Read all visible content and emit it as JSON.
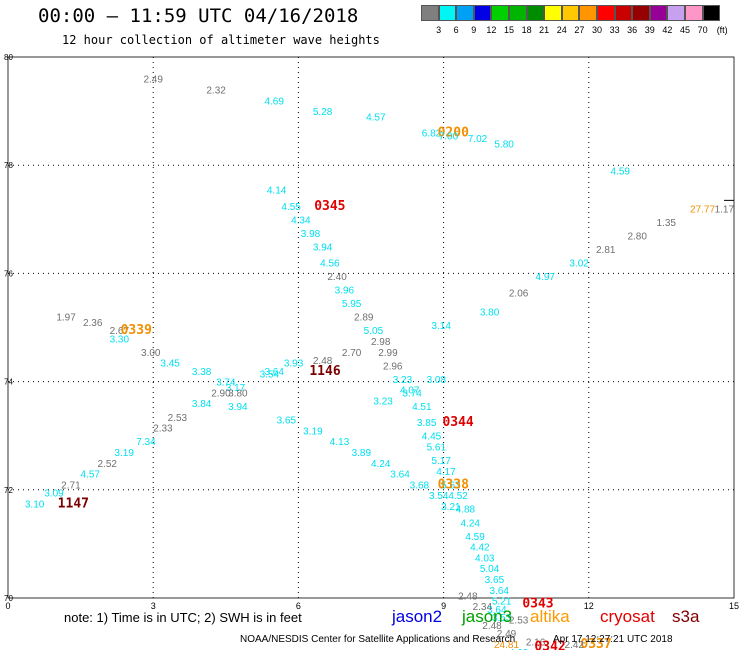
{
  "header": {
    "title": "00:00 – 11:59 UTC 04/16/2018",
    "subtitle": "12 hour collection of altimeter wave heights"
  },
  "legend": {
    "unit": "(ft)",
    "items": [
      {
        "label": "3",
        "color": "#7f7f7f"
      },
      {
        "label": "6",
        "color": "#00f5f5"
      },
      {
        "label": "9",
        "color": "#00a0f5"
      },
      {
        "label": "12",
        "color": "#0000e6"
      },
      {
        "label": "15",
        "color": "#00d000"
      },
      {
        "label": "18",
        "color": "#00b400"
      },
      {
        "label": "21",
        "color": "#008c00"
      },
      {
        "label": "24",
        "color": "#ffff00"
      },
      {
        "label": "27",
        "color": "#ffc800"
      },
      {
        "label": "30",
        "color": "#ff9600"
      },
      {
        "label": "33",
        "color": "#ff0000"
      },
      {
        "label": "36",
        "color": "#c80000"
      },
      {
        "label": "39",
        "color": "#960000"
      },
      {
        "label": "42",
        "color": "#960096"
      },
      {
        "label": "45",
        "color": "#c8a0f0"
      },
      {
        "label": "70",
        "color": "#ff96c8"
      },
      {
        "label": "",
        "color": "#000000"
      }
    ]
  },
  "chart_data": {
    "type": "scatter",
    "xlim": [
      0,
      15
    ],
    "ylim": [
      70,
      80
    ],
    "x_ticks": [
      "0",
      "3",
      "6",
      "9",
      "12",
      "15"
    ],
    "y_ticks": [
      "70",
      "72",
      "74",
      "76",
      "78",
      "80"
    ],
    "grid": true,
    "colors": {
      "cyan": "#00e0f0",
      "gray": "#707070",
      "orange": "#f09000",
      "red": "#e00000",
      "maroon": "#7a0000"
    },
    "wave_heights": [
      {
        "x": 3.0,
        "y": 79.6,
        "label": "2.49",
        "color": "gray"
      },
      {
        "x": 4.3,
        "y": 79.4,
        "label": "2.32",
        "color": "gray"
      },
      {
        "x": 5.5,
        "y": 79.2,
        "label": "4.69",
        "color": "cyan"
      },
      {
        "x": 6.5,
        "y": 79.0,
        "label": "5.28",
        "color": "cyan"
      },
      {
        "x": 7.6,
        "y": 78.9,
        "label": "4.57",
        "color": "cyan"
      },
      {
        "x": 8.75,
        "y": 78.6,
        "label": "6.82",
        "color": "cyan"
      },
      {
        "x": 9.2,
        "y": 78.6,
        "label": "0200",
        "color": "orange",
        "time": true
      },
      {
        "x": 9.1,
        "y": 78.55,
        "label": "7.00",
        "color": "cyan"
      },
      {
        "x": 9.7,
        "y": 78.5,
        "label": "7.02",
        "color": "cyan"
      },
      {
        "x": 10.25,
        "y": 78.4,
        "label": "5.80",
        "color": "cyan"
      },
      {
        "x": 12.65,
        "y": 77.9,
        "label": "4.59",
        "color": "cyan"
      },
      {
        "x": 14.8,
        "y": 77.2,
        "label": "1.17",
        "color": "gray"
      },
      {
        "x": 5.55,
        "y": 77.55,
        "label": "4.14",
        "color": "cyan"
      },
      {
        "x": 5.85,
        "y": 77.25,
        "label": "4.55",
        "color": "cyan"
      },
      {
        "x": 6.65,
        "y": 77.25,
        "label": "0345",
        "color": "red",
        "time": true
      },
      {
        "x": 6.05,
        "y": 77.0,
        "label": "4.34",
        "color": "cyan"
      },
      {
        "x": 6.25,
        "y": 76.75,
        "label": "3.98",
        "color": "cyan"
      },
      {
        "x": 6.5,
        "y": 76.5,
        "label": "3.94",
        "color": "cyan"
      },
      {
        "x": 6.65,
        "y": 76.2,
        "label": "4.56",
        "color": "cyan"
      },
      {
        "x": 6.8,
        "y": 75.95,
        "label": "2.40",
        "color": "gray"
      },
      {
        "x": 6.95,
        "y": 75.7,
        "label": "3.96",
        "color": "cyan"
      },
      {
        "x": 7.1,
        "y": 75.45,
        "label": "5.95",
        "color": "cyan"
      },
      {
        "x": 7.35,
        "y": 75.2,
        "label": "2.89",
        "color": "gray"
      },
      {
        "x": 7.55,
        "y": 74.95,
        "label": "5.05",
        "color": "cyan"
      },
      {
        "x": 7.7,
        "y": 74.75,
        "label": "2.98",
        "color": "gray"
      },
      {
        "x": 7.85,
        "y": 74.55,
        "label": "2.99",
        "color": "gray"
      },
      {
        "x": 7.95,
        "y": 74.3,
        "label": "2.96",
        "color": "gray"
      },
      {
        "x": 8.15,
        "y": 74.05,
        "label": "3.23",
        "color": "cyan"
      },
      {
        "x": 8.85,
        "y": 74.05,
        "label": "3.08",
        "color": "cyan"
      },
      {
        "x": 8.3,
        "y": 73.85,
        "label": "4.07",
        "color": "cyan"
      },
      {
        "x": 8.35,
        "y": 73.8,
        "label": "3.74",
        "color": "cyan"
      },
      {
        "x": 7.75,
        "y": 73.65,
        "label": "3.23",
        "color": "cyan"
      },
      {
        "x": 8.55,
        "y": 73.55,
        "label": "4.51",
        "color": "cyan"
      },
      {
        "x": 8.65,
        "y": 73.25,
        "label": "3.85",
        "color": "cyan"
      },
      {
        "x": 9.3,
        "y": 73.25,
        "label": "0344",
        "color": "red",
        "time": true
      },
      {
        "x": 8.75,
        "y": 73.0,
        "label": "4.45",
        "color": "cyan"
      },
      {
        "x": 8.85,
        "y": 72.8,
        "label": "5.61",
        "color": "cyan"
      },
      {
        "x": 8.95,
        "y": 72.55,
        "label": "5.17",
        "color": "cyan"
      },
      {
        "x": 9.05,
        "y": 72.35,
        "label": "4.17",
        "color": "cyan"
      },
      {
        "x": 9.15,
        "y": 72.1,
        "label": "5.63",
        "color": "cyan"
      },
      {
        "x": 9.3,
        "y": 71.9,
        "label": "4.52",
        "color": "cyan"
      },
      {
        "x": 9.45,
        "y": 71.65,
        "label": "4.88",
        "color": "cyan"
      },
      {
        "x": 9.55,
        "y": 71.4,
        "label": "4.24",
        "color": "cyan"
      },
      {
        "x": 9.65,
        "y": 71.15,
        "label": "4.59",
        "color": "cyan"
      },
      {
        "x": 9.75,
        "y": 70.95,
        "label": "4.42",
        "color": "cyan"
      },
      {
        "x": 9.85,
        "y": 70.75,
        "label": "4.03",
        "color": "cyan"
      },
      {
        "x": 9.95,
        "y": 70.55,
        "label": "5.04",
        "color": "cyan"
      },
      {
        "x": 10.05,
        "y": 70.35,
        "label": "3.65",
        "color": "cyan"
      },
      {
        "x": 10.15,
        "y": 70.15,
        "label": "3.64",
        "color": "cyan"
      },
      {
        "x": 10.2,
        "y": 69.95,
        "label": "5.21",
        "color": "cyan"
      },
      {
        "x": 10.1,
        "y": 69.8,
        "label": "3.64",
        "color": "cyan"
      },
      {
        "x": 10.2,
        "y": 69.65,
        "label": "3.53",
        "color": "cyan"
      },
      {
        "x": 10.0,
        "y": 69.5,
        "label": "2.48",
        "color": "gray"
      },
      {
        "x": 10.3,
        "y": 69.35,
        "label": "2.49",
        "color": "gray"
      },
      {
        "x": 10.9,
        "y": 69.2,
        "label": "2.16",
        "color": "gray"
      },
      {
        "x": 11.2,
        "y": 69.1,
        "label": "0342",
        "color": "red",
        "time": true
      },
      {
        "x": 12.15,
        "y": 69.15,
        "label": "0337",
        "color": "orange",
        "time": true
      },
      {
        "x": 10.3,
        "y": 69.15,
        "label": "24.81",
        "color": "orange"
      },
      {
        "x": 10.55,
        "y": 69.0,
        "label": "4.63",
        "color": "cyan"
      },
      {
        "x": 10.95,
        "y": 69.9,
        "label": "0343",
        "color": "red",
        "time": true
      },
      {
        "x": 9.5,
        "y": 70.05,
        "label": "2.48",
        "color": "gray"
      },
      {
        "x": 9.8,
        "y": 69.85,
        "label": "2.34",
        "color": "gray"
      },
      {
        "x": 10.55,
        "y": 69.6,
        "label": "2.53",
        "color": "gray"
      },
      {
        "x": 11.7,
        "y": 69.15,
        "label": "2.42",
        "color": "gray"
      },
      {
        "x": 1.2,
        "y": 75.2,
        "label": "1.97",
        "color": "gray"
      },
      {
        "x": 1.75,
        "y": 75.1,
        "label": "2.36",
        "color": "gray"
      },
      {
        "x": 2.3,
        "y": 74.95,
        "label": "2.67",
        "color": "gray"
      },
      {
        "x": 2.65,
        "y": 74.95,
        "label": "0339",
        "color": "orange",
        "time": true
      },
      {
        "x": 2.3,
        "y": 74.8,
        "label": "3.30",
        "color": "cyan"
      },
      {
        "x": 2.95,
        "y": 74.55,
        "label": "3.00",
        "color": "gray"
      },
      {
        "x": 3.35,
        "y": 74.35,
        "label": "3.45",
        "color": "cyan"
      },
      {
        "x": 4.0,
        "y": 74.2,
        "label": "3.38",
        "color": "cyan"
      },
      {
        "x": 4.5,
        "y": 74.0,
        "label": "3.74",
        "color": "cyan"
      },
      {
        "x": 4.7,
        "y": 73.9,
        "label": "3.17",
        "color": "cyan"
      },
      {
        "x": 5.4,
        "y": 74.15,
        "label": "3.54",
        "color": "cyan"
      },
      {
        "x": 5.5,
        "y": 74.2,
        "label": "3.64",
        "color": "cyan"
      },
      {
        "x": 5.9,
        "y": 74.35,
        "label": "3.93",
        "color": "cyan"
      },
      {
        "x": 6.5,
        "y": 74.4,
        "label": "2.48",
        "color": "gray"
      },
      {
        "x": 7.1,
        "y": 74.55,
        "label": "2.70",
        "color": "gray"
      },
      {
        "x": 6.55,
        "y": 74.2,
        "label": "1146",
        "color": "maroon",
        "time": true
      },
      {
        "x": 4.4,
        "y": 73.8,
        "label": "2.90",
        "color": "gray"
      },
      {
        "x": 4.75,
        "y": 73.8,
        "label": "3.80",
        "color": "gray"
      },
      {
        "x": 4.0,
        "y": 73.6,
        "label": "3.84",
        "color": "cyan"
      },
      {
        "x": 3.5,
        "y": 73.35,
        "label": "2.53",
        "color": "gray"
      },
      {
        "x": 4.75,
        "y": 73.55,
        "label": "3.94",
        "color": "cyan"
      },
      {
        "x": 5.75,
        "y": 73.3,
        "label": "3.65",
        "color": "cyan"
      },
      {
        "x": 6.3,
        "y": 73.1,
        "label": "3.19",
        "color": "cyan"
      },
      {
        "x": 6.85,
        "y": 72.9,
        "label": "4.13",
        "color": "cyan"
      },
      {
        "x": 7.3,
        "y": 72.7,
        "label": "3.89",
        "color": "cyan"
      },
      {
        "x": 7.7,
        "y": 72.5,
        "label": "4.24",
        "color": "cyan"
      },
      {
        "x": 8.1,
        "y": 72.3,
        "label": "3.64",
        "color": "cyan"
      },
      {
        "x": 8.5,
        "y": 72.1,
        "label": "3.68",
        "color": "cyan"
      },
      {
        "x": 9.2,
        "y": 72.1,
        "label": "0338",
        "color": "orange",
        "time": true
      },
      {
        "x": 8.9,
        "y": 71.9,
        "label": "3.54",
        "color": "cyan"
      },
      {
        "x": 9.15,
        "y": 71.7,
        "label": "3.21",
        "color": "cyan"
      },
      {
        "x": 3.2,
        "y": 73.15,
        "label": "2.33",
        "color": "gray"
      },
      {
        "x": 2.85,
        "y": 72.9,
        "label": "7.34",
        "color": "cyan"
      },
      {
        "x": 2.4,
        "y": 72.7,
        "label": "3.19",
        "color": "cyan"
      },
      {
        "x": 2.05,
        "y": 72.5,
        "label": "2.52",
        "color": "gray"
      },
      {
        "x": 1.7,
        "y": 72.3,
        "label": "4.57",
        "color": "cyan"
      },
      {
        "x": 1.3,
        "y": 72.1,
        "label": "2.71",
        "color": "gray"
      },
      {
        "x": 0.95,
        "y": 71.95,
        "label": "3.09",
        "color": "cyan"
      },
      {
        "x": 0.55,
        "y": 71.75,
        "label": "3.10",
        "color": "cyan"
      },
      {
        "x": 1.35,
        "y": 71.75,
        "label": "1147",
        "color": "maroon",
        "time": true
      },
      {
        "x": 8.95,
        "y": 75.05,
        "label": "3.14",
        "color": "cyan"
      },
      {
        "x": 9.95,
        "y": 75.3,
        "label": "3.80",
        "color": "cyan"
      },
      {
        "x": 10.55,
        "y": 75.65,
        "label": "2.06",
        "color": "gray"
      },
      {
        "x": 11.1,
        "y": 75.95,
        "label": "4.97",
        "color": "cyan"
      },
      {
        "x": 11.8,
        "y": 76.2,
        "label": "3.02",
        "color": "cyan"
      },
      {
        "x": 12.35,
        "y": 76.45,
        "label": "2.81",
        "color": "gray"
      },
      {
        "x": 13.0,
        "y": 76.7,
        "label": "2.80",
        "color": "gray"
      },
      {
        "x": 13.6,
        "y": 76.95,
        "label": "1.35",
        "color": "gray"
      },
      {
        "x": 14.35,
        "y": 77.2,
        "label": "27.77",
        "color": "orange"
      }
    ]
  },
  "footer": {
    "note": "note:  1) Time is in UTC;  2) SWH is in feet",
    "missions": [
      {
        "name": "jason2",
        "color": "#0000e0"
      },
      {
        "name": "jason3",
        "color": "#00a000"
      },
      {
        "name": "altika",
        "color": "#ff9900"
      },
      {
        "name": "cryosat",
        "color": "#e00000"
      },
      {
        "name": "s3a",
        "color": "#800000"
      }
    ],
    "credit": "NOAA/NESDIS Center for Satellite Applications and Research",
    "timestamp": "Apr 17 12:27:21 UTC 2018"
  }
}
